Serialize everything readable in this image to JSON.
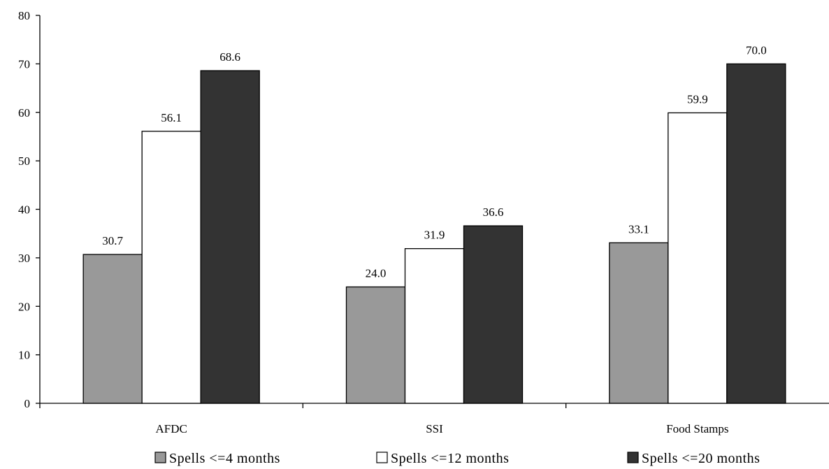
{
  "chart_data": {
    "type": "bar",
    "title": "",
    "xlabel": "",
    "ylabel": "",
    "categories": [
      "AFDC",
      "SSI",
      "Food Stamps"
    ],
    "series": [
      {
        "name": "Spells <=4 months",
        "values": [
          30.7,
          24.0,
          33.1
        ],
        "color": "#999999",
        "labels": [
          "30.7",
          "24.0",
          "33.1"
        ]
      },
      {
        "name": "Spells <=12 months",
        "values": [
          56.1,
          31.9,
          59.9
        ],
        "color": "#ffffff",
        "labels": [
          "56.1",
          "31.9",
          "59.9"
        ]
      },
      {
        "name": "Spells <=20 months",
        "values": [
          68.6,
          36.6,
          70.0
        ],
        "color": "#333333",
        "labels": [
          "68.6",
          "36.6",
          "70.0"
        ]
      }
    ],
    "ylim": [
      0,
      80
    ],
    "yticks": [
      "0",
      "10",
      "20",
      "30",
      "40",
      "50",
      "60",
      "70",
      "80"
    ],
    "grid": false,
    "legend_position": "bottom"
  }
}
